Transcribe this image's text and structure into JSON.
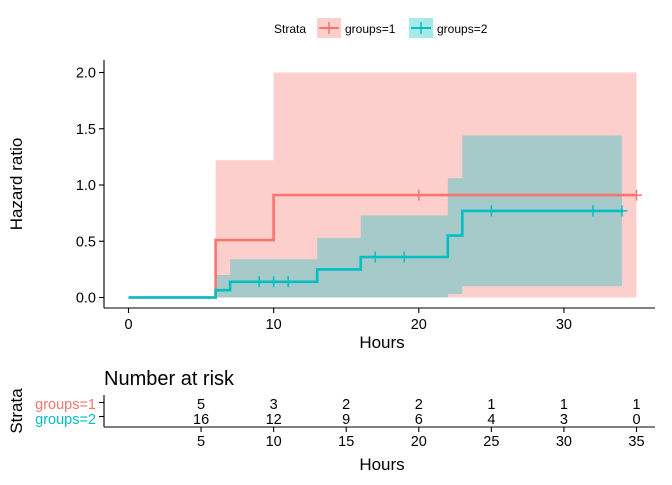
{
  "legend": {
    "title": "Strata",
    "items": [
      {
        "label": "groups=1",
        "color": "#F8766D",
        "fill": "#F8766D",
        "fill_opacity": 0.35
      },
      {
        "label": "groups=2",
        "color": "#00BFC4",
        "fill": "#00BFC4",
        "fill_opacity": 0.35
      }
    ],
    "placement": "top"
  },
  "chart_data": [
    {
      "type": "line",
      "subtype": "step",
      "title": "",
      "xlabel": "Hours",
      "ylabel": "Hazard ratio",
      "xlim": [
        0,
        35
      ],
      "ylim": [
        0,
        2.0
      ],
      "xticks": [
        0,
        10,
        20,
        30
      ],
      "yticks": [
        0.0,
        0.5,
        1.0,
        1.5,
        2.0
      ],
      "ytick_labels": [
        "0.0",
        "0.5",
        "1.0",
        "1.5",
        "2.0"
      ],
      "grid": false,
      "series": [
        {
          "name": "groups=1",
          "color": "#F8766D",
          "steps": [
            [
              0,
              0
            ],
            [
              6,
              0.51
            ],
            [
              10,
              0.91
            ],
            [
              35,
              0.91
            ]
          ],
          "lower": [
            [
              6,
              0
            ],
            [
              35,
              0
            ]
          ],
          "upper": [
            [
              6,
              1.22
            ],
            [
              10,
              2.0
            ],
            [
              35,
              2.0
            ]
          ],
          "censor_x": [
            20,
            35
          ]
        },
        {
          "name": "groups=2",
          "color": "#00BFC4",
          "steps": [
            [
              0,
              0
            ],
            [
              6,
              0.065
            ],
            [
              7,
              0.14
            ],
            [
              13,
              0.25
            ],
            [
              16,
              0.36
            ],
            [
              22,
              0.55
            ],
            [
              23,
              0.77
            ],
            [
              34,
              0.77
            ]
          ],
          "lower": [
            [
              6,
              0
            ],
            [
              22,
              0.03
            ],
            [
              23,
              0.1
            ],
            [
              34,
              0.1
            ]
          ],
          "upper": [
            [
              6,
              0.2
            ],
            [
              7,
              0.34
            ],
            [
              13,
              0.53
            ],
            [
              16,
              0.73
            ],
            [
              22,
              1.06
            ],
            [
              23,
              1.44
            ],
            [
              34,
              1.44
            ]
          ],
          "censor_x": [
            9,
            10,
            11,
            17,
            19,
            25,
            32,
            34
          ]
        }
      ]
    },
    {
      "type": "table",
      "title": "Number at risk",
      "xlabel": "Hours",
      "ylabel": "Strata",
      "xlim": [
        0,
        35
      ],
      "x": [
        5,
        10,
        15,
        20,
        25,
        30,
        35
      ],
      "rows": [
        {
          "name": "groups=1",
          "color": "#F8766D",
          "values": [
            "5",
            "3",
            "2",
            "2",
            "1",
            "1",
            "1"
          ]
        },
        {
          "name": "groups=2",
          "color": "#00BFC4",
          "values": [
            "16",
            "12",
            "9",
            "6",
            "4",
            "3",
            "0"
          ]
        }
      ]
    }
  ]
}
